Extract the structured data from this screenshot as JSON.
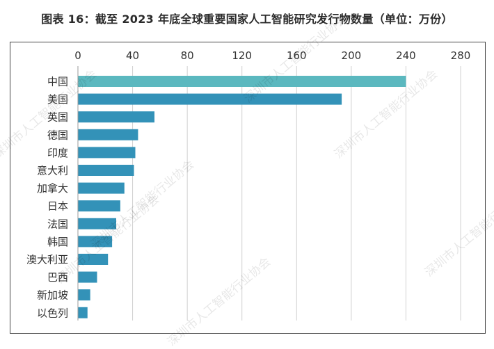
{
  "title": "图表 16：截至 2023 年底全球重要国家人工智能研究发行物数量（单位：万份）",
  "watermark": "深圳市人工智能行业协会",
  "colors": {
    "highlight": "#5bb8bf",
    "bar": "#3392b8",
    "grid": "#d0d0d0",
    "text": "#333333"
  },
  "chart_data": {
    "type": "bar",
    "orientation": "horizontal",
    "title": "图表 16：截至 2023 年底全球重要国家人工智能研究发行物数量（单位：万份）",
    "xlabel": "",
    "ylabel": "",
    "xlim": [
      0,
      280
    ],
    "xticks": [
      0,
      40,
      80,
      120,
      160,
      200,
      240,
      280
    ],
    "x_axis_position": "top",
    "grid": true,
    "legend": "none",
    "categories": [
      "中国",
      "美国",
      "英国",
      "德国",
      "印度",
      "意大利",
      "加拿大",
      "日本",
      "法国",
      "韩国",
      "澳大利亚",
      "巴西",
      "新加坡",
      "以色列"
    ],
    "values": [
      240,
      193,
      56,
      44,
      42,
      41,
      34,
      31,
      28,
      25,
      22,
      14,
      9,
      7
    ]
  }
}
